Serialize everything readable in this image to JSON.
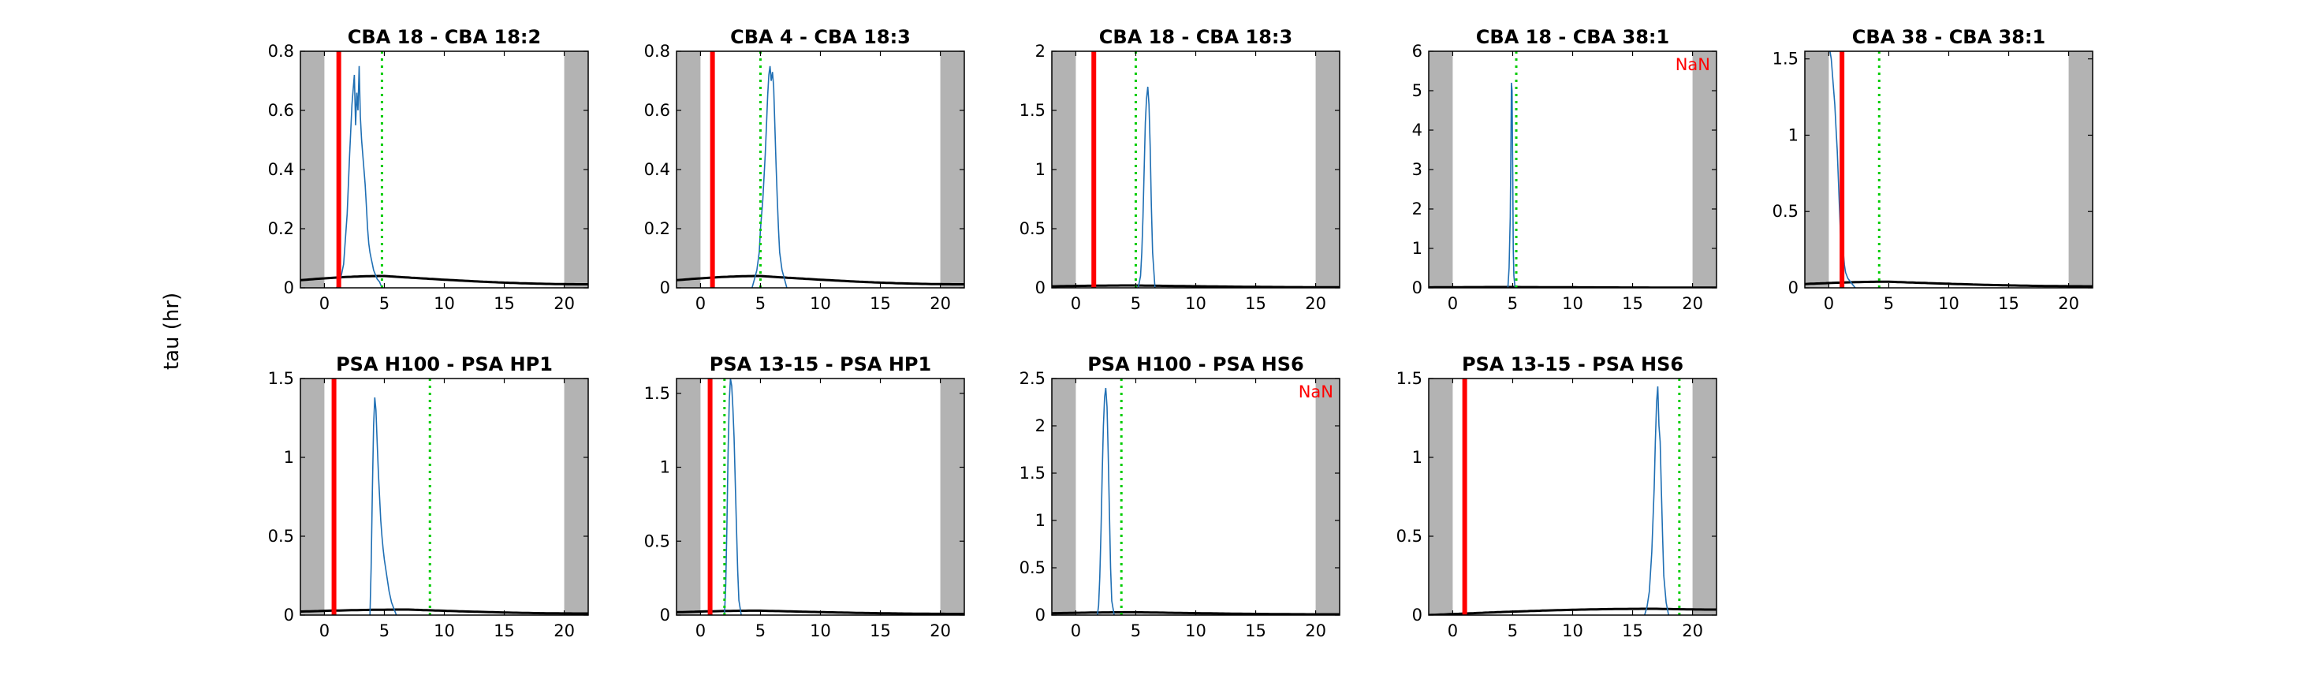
{
  "figure": {
    "ylabel": "tau (hr)"
  },
  "colors": {
    "shade": "#b3b3b3",
    "trace": "#1f6fb4",
    "red_line": "#ff0000",
    "green_line": "#00cc00",
    "curve": "#000000",
    "nan_text": "#ff0000"
  },
  "chart_data": [
    {
      "type": "line",
      "title": "CBA 18 - CBA 18:2",
      "xlim": [
        -2,
        22
      ],
      "ylim": [
        0,
        0.8
      ],
      "xticks": [
        0,
        5,
        10,
        15,
        20
      ],
      "yticks": [
        0,
        0.2,
        0.4,
        0.6,
        0.8
      ],
      "shaded_x": [
        [
          -2,
          0
        ],
        [
          20,
          22
        ]
      ],
      "red_x": 1.2,
      "green_x": 4.8,
      "curve": {
        "peak": 0.04,
        "center": 5,
        "end": 0.012
      },
      "trace": {
        "x": [
          1.0,
          1.3,
          1.6,
          1.9,
          2.1,
          2.3,
          2.5,
          2.6,
          2.7,
          2.8,
          2.9,
          3.0,
          3.1,
          3.2,
          3.3,
          3.4,
          3.5,
          3.6,
          3.7,
          3.8,
          3.9,
          4.0,
          4.1,
          4.2,
          4.4,
          4.6,
          4.8
        ],
        "y": [
          0.0,
          0.02,
          0.08,
          0.25,
          0.45,
          0.62,
          0.72,
          0.55,
          0.66,
          0.6,
          0.75,
          0.58,
          0.5,
          0.45,
          0.4,
          0.35,
          0.28,
          0.2,
          0.15,
          0.12,
          0.1,
          0.08,
          0.06,
          0.05,
          0.03,
          0.02,
          0.0
        ]
      },
      "annotation": ""
    },
    {
      "type": "line",
      "title": "CBA 4 - CBA 18:3",
      "xlim": [
        -2,
        22
      ],
      "ylim": [
        0,
        0.8
      ],
      "xticks": [
        0,
        5,
        10,
        15,
        20
      ],
      "yticks": [
        0,
        0.2,
        0.4,
        0.6,
        0.8
      ],
      "shaded_x": [
        [
          -2,
          0
        ],
        [
          20,
          22
        ]
      ],
      "red_x": 1.0,
      "green_x": 5.0,
      "curve": {
        "peak": 0.04,
        "center": 5,
        "end": 0.012
      },
      "trace": {
        "x": [
          4.3,
          4.5,
          4.7,
          4.9,
          5.0,
          5.2,
          5.4,
          5.5,
          5.6,
          5.7,
          5.8,
          5.9,
          6.0,
          6.1,
          6.2,
          6.3,
          6.4,
          6.5,
          6.6,
          6.8,
          7.0,
          7.2
        ],
        "y": [
          0.0,
          0.03,
          0.06,
          0.12,
          0.2,
          0.3,
          0.45,
          0.55,
          0.65,
          0.72,
          0.75,
          0.7,
          0.73,
          0.68,
          0.55,
          0.42,
          0.3,
          0.2,
          0.12,
          0.06,
          0.03,
          0.0
        ]
      },
      "annotation": ""
    },
    {
      "type": "line",
      "title": "CBA 18 - CBA 18:3",
      "xlim": [
        -2,
        22
      ],
      "ylim": [
        0,
        2
      ],
      "xticks": [
        0,
        5,
        10,
        15,
        20
      ],
      "yticks": [
        0,
        0.5,
        1,
        1.5,
        2
      ],
      "shaded_x": [
        [
          -2,
          0
        ],
        [
          20,
          22
        ]
      ],
      "red_x": 1.5,
      "green_x": 5.0,
      "curve": {
        "peak": 0.02,
        "center": 5,
        "end": 0.005
      },
      "trace": {
        "x": [
          5.2,
          5.4,
          5.5,
          5.6,
          5.7,
          5.8,
          5.9,
          6.0,
          6.1,
          6.2,
          6.3,
          6.4,
          6.6
        ],
        "y": [
          0.0,
          0.1,
          0.3,
          0.6,
          1.0,
          1.4,
          1.6,
          1.7,
          1.55,
          1.2,
          0.7,
          0.3,
          0.0
        ]
      },
      "annotation": ""
    },
    {
      "type": "line",
      "title": "CBA 18 - CBA 38:1",
      "xlim": [
        -2,
        22
      ],
      "ylim": [
        0,
        6
      ],
      "xticks": [
        0,
        5,
        10,
        15,
        20
      ],
      "yticks": [
        0,
        1,
        2,
        3,
        4,
        5,
        6
      ],
      "shaded_x": [
        [
          -2,
          0
        ],
        [
          20,
          22
        ]
      ],
      "red_x": null,
      "green_x": 5.3,
      "curve": {
        "peak": 0.02,
        "center": 5,
        "end": 0.005
      },
      "trace": {
        "x": [
          4.6,
          4.7,
          4.8,
          4.85,
          4.9,
          4.95,
          5.0,
          5.05,
          5.1,
          5.2
        ],
        "y": [
          0.0,
          0.5,
          1.8,
          3.5,
          5.2,
          5.0,
          3.0,
          1.0,
          0.3,
          0.0
        ]
      },
      "annotation": "NaN"
    },
    {
      "type": "line",
      "title": "CBA 38 - CBA 38:1",
      "xlim": [
        -2,
        22
      ],
      "ylim": [
        0,
        1.55
      ],
      "xticks": [
        0,
        5,
        10,
        15,
        20
      ],
      "yticks": [
        0,
        0.5,
        1,
        1.5
      ],
      "shaded_x": [
        [
          -2,
          0
        ],
        [
          20,
          22
        ]
      ],
      "red_x": 1.1,
      "green_x": 4.2,
      "curve": {
        "peak": 0.04,
        "center": 5,
        "end": 0.01
      },
      "trace": {
        "x": [
          0.0,
          0.1,
          0.2,
          0.3,
          0.4,
          0.5,
          0.6,
          0.7,
          0.8,
          0.9,
          1.0,
          1.1,
          1.2,
          1.3,
          1.4,
          1.5,
          1.6,
          1.8,
          2.0,
          2.2
        ],
        "y": [
          1.55,
          1.55,
          1.5,
          1.4,
          1.3,
          1.2,
          1.05,
          0.9,
          0.7,
          0.5,
          0.3,
          0.2,
          0.24,
          0.15,
          0.1,
          0.08,
          0.06,
          0.04,
          0.02,
          0.0
        ]
      },
      "annotation": ""
    },
    {
      "type": "line",
      "title": "PSA H100 - PSA HP1",
      "xlim": [
        -2,
        22
      ],
      "ylim": [
        0,
        1.5
      ],
      "xticks": [
        0,
        5,
        10,
        15,
        20
      ],
      "yticks": [
        0,
        0.5,
        1,
        1.5
      ],
      "shaded_x": [
        [
          -2,
          0
        ],
        [
          20,
          22
        ]
      ],
      "red_x": 0.8,
      "green_x": 8.8,
      "curve": {
        "peak": 0.035,
        "center": 7,
        "end": 0.01
      },
      "trace": {
        "x": [
          3.8,
          3.9,
          4.0,
          4.1,
          4.2,
          4.3,
          4.4,
          4.5,
          4.6,
          4.7,
          4.8,
          4.9,
          5.0,
          5.2,
          5.4,
          5.6,
          5.8,
          6.0
        ],
        "y": [
          0.0,
          0.3,
          0.8,
          1.2,
          1.38,
          1.3,
          1.1,
          0.9,
          0.75,
          0.6,
          0.5,
          0.42,
          0.35,
          0.25,
          0.15,
          0.08,
          0.04,
          0.0
        ]
      },
      "annotation": ""
    },
    {
      "type": "line",
      "title": "PSA 13-15 - PSA HP1",
      "xlim": [
        -2,
        22
      ],
      "ylim": [
        0,
        1.6
      ],
      "xticks": [
        0,
        5,
        10,
        15,
        20
      ],
      "yticks": [
        0,
        0.5,
        1,
        1.5
      ],
      "shaded_x": [
        [
          -2,
          0
        ],
        [
          20,
          22
        ]
      ],
      "red_x": 0.8,
      "green_x": 2.0,
      "curve": {
        "peak": 0.03,
        "center": 5,
        "end": 0.008
      },
      "trace": {
        "x": [
          2.0,
          2.1,
          2.2,
          2.3,
          2.4,
          2.5,
          2.6,
          2.7,
          2.8,
          2.9,
          3.0,
          3.1,
          3.2,
          3.4
        ],
        "y": [
          0.0,
          0.2,
          0.6,
          1.1,
          1.45,
          1.6,
          1.55,
          1.4,
          1.2,
          0.9,
          0.6,
          0.3,
          0.1,
          0.0
        ]
      },
      "annotation": ""
    },
    {
      "type": "line",
      "title": "PSA H100 - PSA HS6",
      "xlim": [
        -2,
        22
      ],
      "ylim": [
        0,
        2.5
      ],
      "xticks": [
        0,
        5,
        10,
        15,
        20
      ],
      "yticks": [
        0,
        0.5,
        1,
        1.5,
        2,
        2.5
      ],
      "shaded_x": [
        [
          -2,
          0
        ],
        [
          20,
          22
        ]
      ],
      "red_x": null,
      "green_x": 3.8,
      "curve": {
        "peak": 0.03,
        "center": 5,
        "end": 0.008
      },
      "trace": {
        "x": [
          1.8,
          1.9,
          2.0,
          2.1,
          2.2,
          2.3,
          2.4,
          2.5,
          2.6,
          2.7,
          2.8,
          2.9,
          3.0,
          3.2
        ],
        "y": [
          0.0,
          0.1,
          0.4,
          0.9,
          1.5,
          2.0,
          2.3,
          2.4,
          2.2,
          1.7,
          1.1,
          0.5,
          0.15,
          0.0
        ]
      },
      "annotation": "NaN"
    },
    {
      "type": "line",
      "title": "PSA 13-15 - PSA HS6",
      "xlim": [
        -2,
        22
      ],
      "ylim": [
        0,
        1.5
      ],
      "xticks": [
        0,
        5,
        10,
        15,
        20
      ],
      "yticks": [
        0,
        0.5,
        1,
        1.5
      ],
      "shaded_x": [
        [
          -2,
          0
        ],
        [
          20,
          22
        ]
      ],
      "red_x": 1.0,
      "green_x": 18.9,
      "curve": {
        "peak": 0.04,
        "center": 17,
        "end": 0.035,
        "start": 0.0
      },
      "trace": {
        "x": [
          16.0,
          16.2,
          16.4,
          16.6,
          16.8,
          16.9,
          17.0,
          17.1,
          17.2,
          17.3,
          17.4,
          17.5,
          17.6,
          17.8,
          18.0
        ],
        "y": [
          0.0,
          0.05,
          0.15,
          0.4,
          0.8,
          1.1,
          1.35,
          1.45,
          1.2,
          1.1,
          0.8,
          0.5,
          0.25,
          0.08,
          0.0
        ]
      },
      "annotation": ""
    }
  ]
}
